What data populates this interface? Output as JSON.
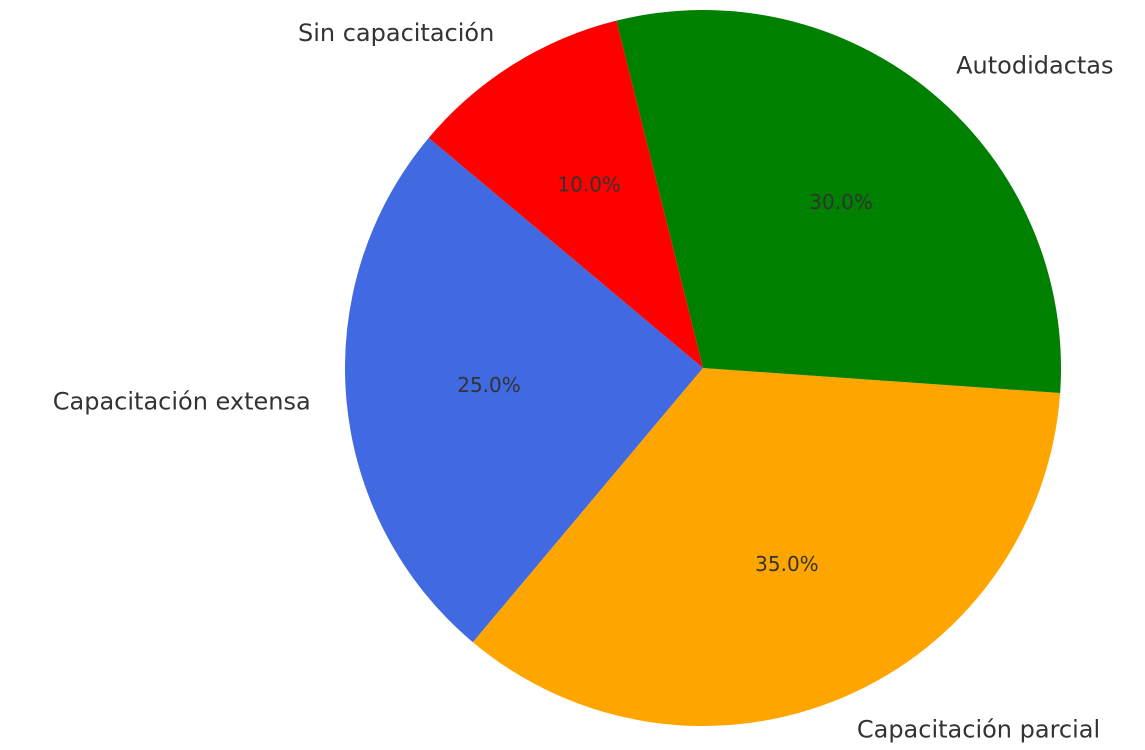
{
  "chart_data": {
    "type": "pie",
    "categories": [
      "Capacitación extensa",
      "Capacitación parcial",
      "Autodidactas",
      "Sin capacitación"
    ],
    "values": [
      25,
      35,
      30,
      10
    ],
    "value_labels": [
      "25.0%",
      "35.0%",
      "30.0%",
      "10.0%"
    ],
    "colors": [
      "#4169e1",
      "#ffa500",
      "#008000",
      "#ff0000"
    ],
    "startangle": 140
  }
}
